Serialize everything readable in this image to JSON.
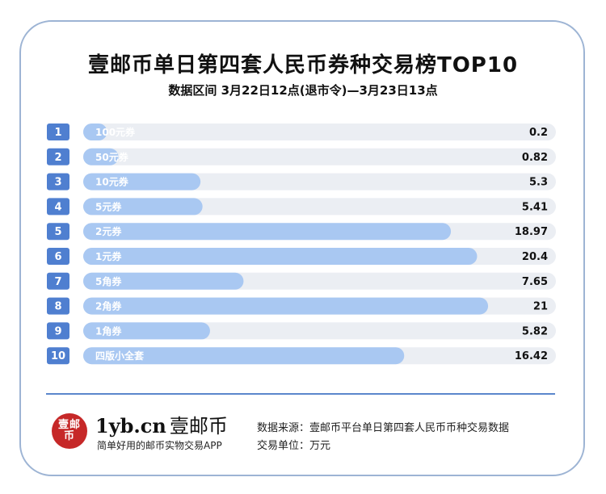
{
  "title": "壹邮币单日第四套人民币券种交易榜TOP10",
  "subtitle": "数据区间 3月22日12点(退市令)—3月23日13点",
  "chart_data": {
    "type": "bar",
    "orientation": "horizontal",
    "categories": [
      "100元券",
      "50元券",
      "10元券",
      "5元券",
      "2元券",
      "1元券",
      "5角券",
      "2角券",
      "1角券",
      "四版小全套"
    ],
    "ranks": [
      "1",
      "2",
      "3",
      "4",
      "5",
      "6",
      "7",
      "8",
      "9",
      "10"
    ],
    "values": [
      0.2,
      0.82,
      5.3,
      5.41,
      18.97,
      20.4,
      7.65,
      21,
      5.82,
      16.42
    ],
    "value_labels": [
      "0.2",
      "0.82",
      "5.3",
      "5.41",
      "18.97",
      "20.4",
      "7.65",
      "21",
      "5.82",
      "16.42"
    ],
    "xlim": [
      0,
      24
    ],
    "grid": false,
    "colors": {
      "bar": "#a9c8f2",
      "track": "#ebeef3",
      "rank_bg": "#4f7fd0",
      "rank_text": "#ffffff",
      "label_text": "#ffffff",
      "value_text": "#111111"
    }
  },
  "footer": {
    "logo_seal": "壹邮币",
    "brand_latin": "1yb.cn",
    "brand_cn": "壹邮币",
    "slogan": "简单好用的邮币实物交易APP",
    "source": "数据来源：壹邮币平台单日第四套人民币币种交易数据",
    "unit": "交易单位：万元"
  }
}
